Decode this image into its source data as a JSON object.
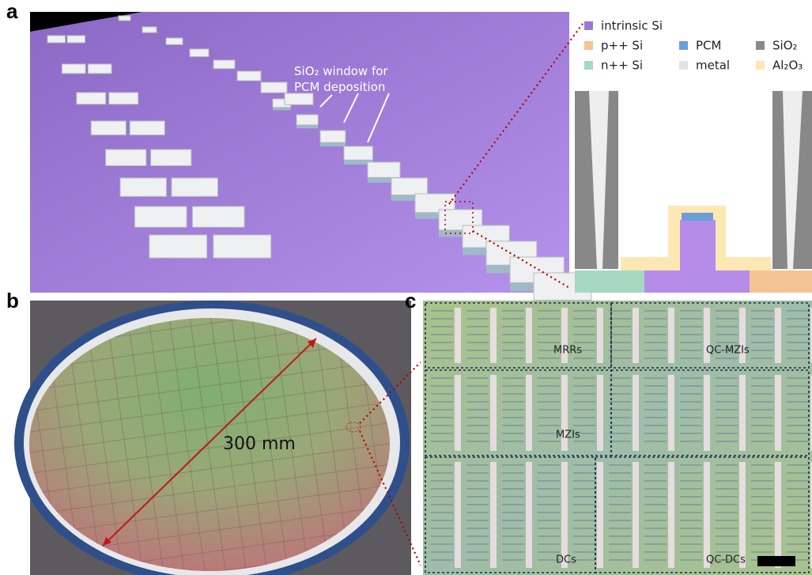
{
  "panels": {
    "a": {
      "label": "a",
      "annotation": [
        "SiO₂ window for",
        "PCM deposition"
      ],
      "legend": [
        "intrinsic Si",
        "p++ Si",
        "PCM",
        "SiO₂",
        "n++ Si",
        "metal",
        "Al₂O₃"
      ]
    },
    "b": {
      "label": "b",
      "dimension": "300 mm"
    },
    "c": {
      "label": "c",
      "regions": [
        "MRRs",
        "QC-MZIs",
        "MZIs",
        "DCs",
        "QC-DCs"
      ]
    }
  }
}
